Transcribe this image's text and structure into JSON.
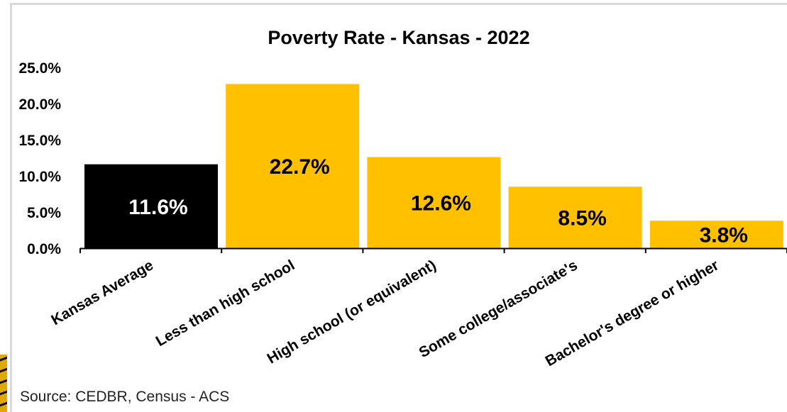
{
  "chart_data": {
    "type": "bar",
    "title": "Poverty Rate - Kansas - 2022",
    "xlabel": "",
    "ylabel": "",
    "categories": [
      "Kansas Average",
      "Less than high school",
      "High school (or equivalent)",
      "Some college/associate's",
      "Bachelor's degree or higher"
    ],
    "values": [
      11.6,
      22.7,
      12.6,
      8.5,
      3.8
    ],
    "data_labels": [
      "11.6%",
      "22.7%",
      "12.6%",
      "8.5%",
      "3.8%"
    ],
    "bar_colors": [
      "#000000",
      "#FFC000",
      "#FFC000",
      "#FFC000",
      "#FFC000"
    ],
    "label_colors": [
      "#ffffff",
      "#000000",
      "#000000",
      "#000000",
      "#000000"
    ],
    "ylim": [
      0,
      25
    ],
    "y_ticks": [
      "0.0%",
      "5.0%",
      "10.0%",
      "15.0%",
      "20.0%",
      "25.0%"
    ],
    "grid": false,
    "legend": "none"
  },
  "source": "Source: CEDBR, Census - ACS"
}
